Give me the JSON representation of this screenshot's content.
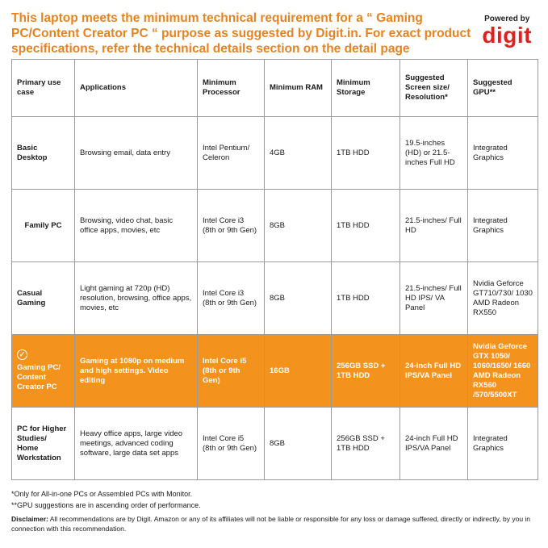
{
  "headline": "This laptop meets the minimum technical requirement for a “ Gaming PC/Content Creator PC “ purpose as suggested by Digit.in. For exact product specifications, refer the technical details section on the detail page",
  "brand": {
    "powered_by": "Powered by",
    "logo_text": "digit"
  },
  "colors": {
    "accent": "#f4921e",
    "headline": "#e8821e",
    "logo": "#e0201b"
  },
  "table": {
    "headers": [
      "Primary use case",
      "Applications",
      "Minimum Processor",
      "Minimum RAM",
      "Minimum Storage",
      "Suggested Screen size/ Resolution*",
      "Suggested GPU**"
    ],
    "rows": [
      [
        "Basic Desktop",
        "Browsing email, data entry",
        "Intel Pentium/ Celeron",
        "4GB",
        "1TB HDD",
        "19.5-inches (HD) or 21.5-inches Full HD",
        "Integrated Graphics"
      ],
      [
        "Family PC",
        "Browsing, video chat, basic office apps, movies, etc",
        "Intel Core i3 (8th or 9th Gen)",
        "8GB",
        "1TB HDD",
        "21.5-inches/ Full HD",
        "Integrated Graphics"
      ],
      [
        "Casual Gaming",
        "Light gaming at 720p (HD) resolution, browsing, office apps, movies, etc",
        "Intel Core i3 (8th or 9th Gen)",
        "8GB",
        "1TB HDD",
        "21.5-inches/ Full HD IPS/ VA Panel",
        "Nvidia Geforce GT710/730/ 1030 AMD Radeon RX550"
      ],
      [
        "Gaming PC/ Content Creator PC",
        "Gaming at 1080p on medium and high settings. Video editing",
        "Intel Core i5 (8th or 9th Gen)",
        "16GB",
        "256GB SSD + 1TB HDD",
        "24-inch Full HD IPS/VA Panel",
        "Nvidia Geforce GTX 1050/ 1060/1650/ 1660 AMD Radeon RX560 /570/5500XT"
      ],
      [
        "PC for Higher Studies/ Home Workstation",
        "Heavy office apps, large video meetings, advanced coding software, large data set apps",
        "Intel Core i5 (8th or 9th Gen)",
        "8GB",
        "256GB SSD + 1TB HDD",
        "24-inch Full HD IPS/VA Panel",
        "Integrated Graphics"
      ]
    ],
    "highlighted_row": 3,
    "highlight_icon": "check-circle-icon"
  },
  "footnotes": [
    "*Only for All-in-one PCs or Assembled PCs with Monitor.",
    "**GPU suggestions are in ascending order of performance."
  ],
  "disclaimer": {
    "label": "Disclaimer:",
    "text": " All recommendations are by Digit. Amazon or any of its affiliates will not be liable or responsible for any loss or damage suffered, directly or indirectly, by you in connection with this recommendation."
  }
}
